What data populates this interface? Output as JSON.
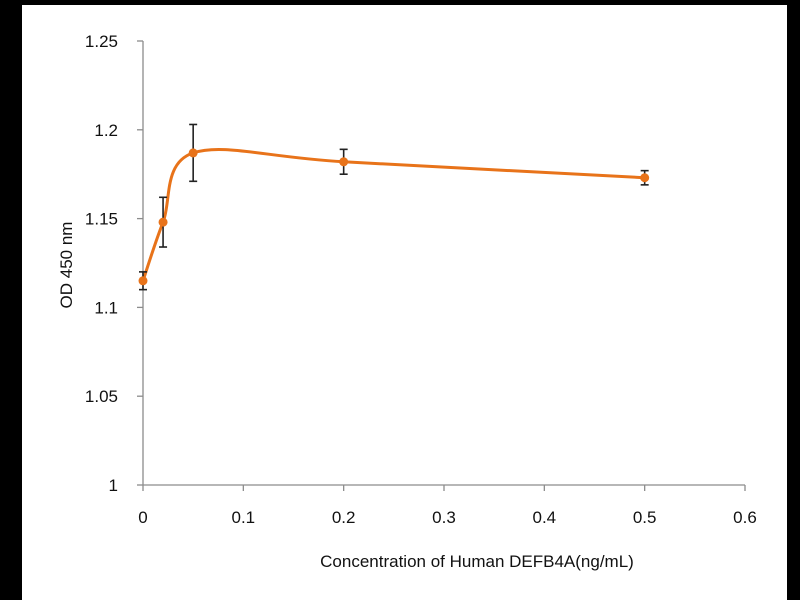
{
  "chart_data": {
    "type": "line",
    "title": "",
    "xlabel": "Concentration of Human DEFB4A(ng/mL)",
    "ylabel": "OD 450 nm",
    "xlim": [
      0,
      0.6
    ],
    "ylim": [
      1,
      1.25
    ],
    "x_ticks": [
      "0",
      "0.1",
      "0.2",
      "0.3",
      "0.4",
      "0.5",
      "0.6"
    ],
    "y_ticks": [
      "1",
      "1.05",
      "1.1",
      "1.15",
      "1.2",
      "1.25"
    ],
    "grid": false,
    "smoothed": true,
    "series": [
      {
        "name": "OD 450",
        "color": "#e8731a",
        "x": [
          0,
          0.02,
          0.05,
          0.2,
          0.5
        ],
        "y": [
          1.115,
          1.148,
          1.187,
          1.182,
          1.173
        ],
        "error": [
          0.005,
          0.014,
          0.016,
          0.007,
          0.004
        ]
      }
    ]
  }
}
